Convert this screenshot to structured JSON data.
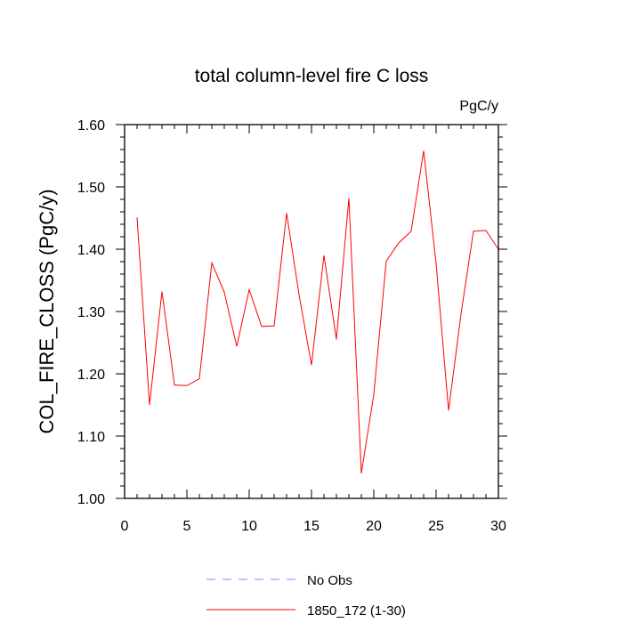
{
  "chart_data": {
    "type": "line",
    "title": "total column-level fire C loss",
    "units_label": "PgC/y",
    "xlabel": "",
    "ylabel": "COL_FIRE_CLOSS  (PgC/y)",
    "xlim": [
      0,
      30
    ],
    "ylim": [
      1.0,
      1.6
    ],
    "x_ticks": [
      0,
      5,
      10,
      15,
      20,
      25,
      30
    ],
    "y_ticks": [
      "1.00",
      "1.10",
      "1.20",
      "1.30",
      "1.40",
      "1.50",
      "1.60"
    ],
    "grid": false,
    "legend_position": "bottom-center",
    "series": [
      {
        "name": "No Obs",
        "color": "#8888ff",
        "dashed": true,
        "x": [],
        "y": []
      },
      {
        "name": "1850_172 (1-30)",
        "color": "#ff0000",
        "dashed": false,
        "x": [
          1,
          2,
          3,
          4,
          5,
          6,
          7,
          8,
          9,
          10,
          11,
          12,
          13,
          14,
          15,
          16,
          17,
          18,
          19,
          20,
          21,
          22,
          23,
          24,
          25,
          26,
          27,
          28,
          29,
          30
        ],
        "y": [
          1.451,
          1.15,
          1.332,
          1.182,
          1.181,
          1.192,
          1.378,
          1.331,
          1.244,
          1.335,
          1.276,
          1.277,
          1.458,
          1.327,
          1.214,
          1.39,
          1.255,
          1.482,
          1.04,
          1.167,
          1.381,
          1.41,
          1.429,
          1.558,
          1.377,
          1.141,
          1.296,
          1.429,
          1.43,
          1.4
        ]
      }
    ]
  }
}
